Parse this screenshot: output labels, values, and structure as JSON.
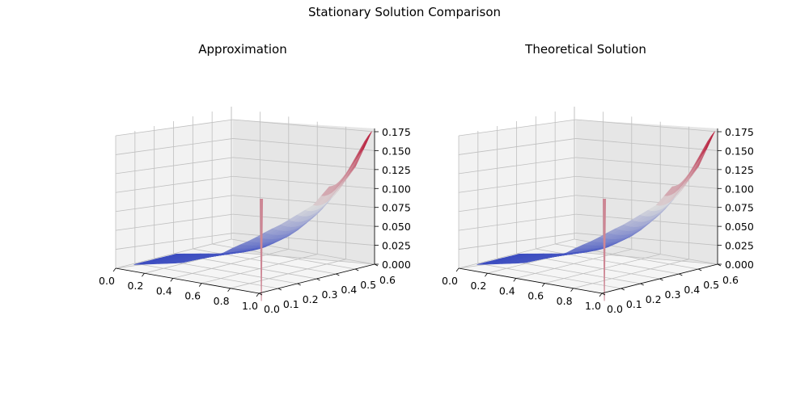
{
  "figure": {
    "suptitle": "Stationary Solution Comparison"
  },
  "colors": {
    "low": "#3b4cc0",
    "mid": "#dddddd",
    "high": "#b40426",
    "pane_back": "#f2f2f2",
    "pane_side": "#e6e6e6",
    "grid": "#bfbfbf"
  },
  "chart_data": [
    {
      "type": "surface",
      "title": "Approximation",
      "colormap": "coolwarm",
      "xlim": [
        0,
        1.0
      ],
      "ylim": [
        0,
        0.6
      ],
      "zlim": [
        0,
        0.175
      ],
      "xticks": [
        "0.0",
        "0.2",
        "0.4",
        "0.6",
        "0.8",
        "1.0"
      ],
      "yticks": [
        "0.0",
        "0.1",
        "0.2",
        "0.3",
        "0.4",
        "0.5",
        "0.6"
      ],
      "zticks": [
        "0.000",
        "0.025",
        "0.050",
        "0.075",
        "0.100",
        "0.125",
        "0.150",
        "0.175"
      ],
      "grid": true,
      "surface_profile": {
        "x": [
          0.0,
          0.25,
          0.45,
          0.6,
          0.75,
          0.9,
          1.0
        ],
        "z": [
          0.0,
          0.005,
          0.02,
          0.045,
          0.08,
          0.125,
          0.175
        ]
      }
    },
    {
      "type": "surface",
      "title": "Theoretical Solution",
      "colormap": "coolwarm",
      "xlim": [
        0,
        1.0
      ],
      "ylim": [
        0,
        0.6
      ],
      "zlim": [
        0,
        0.175
      ],
      "xticks": [
        "0.0",
        "0.2",
        "0.4",
        "0.6",
        "0.8",
        "1.0"
      ],
      "yticks": [
        "0.0",
        "0.1",
        "0.2",
        "0.3",
        "0.4",
        "0.5",
        "0.6"
      ],
      "zticks": [
        "0.000",
        "0.025",
        "0.050",
        "0.075",
        "0.100",
        "0.125",
        "0.150",
        "0.175"
      ],
      "grid": true,
      "surface_profile": {
        "x": [
          0.0,
          0.25,
          0.45,
          0.6,
          0.75,
          0.9,
          1.0
        ],
        "z": [
          0.0,
          0.005,
          0.02,
          0.045,
          0.08,
          0.125,
          0.175
        ]
      }
    }
  ]
}
